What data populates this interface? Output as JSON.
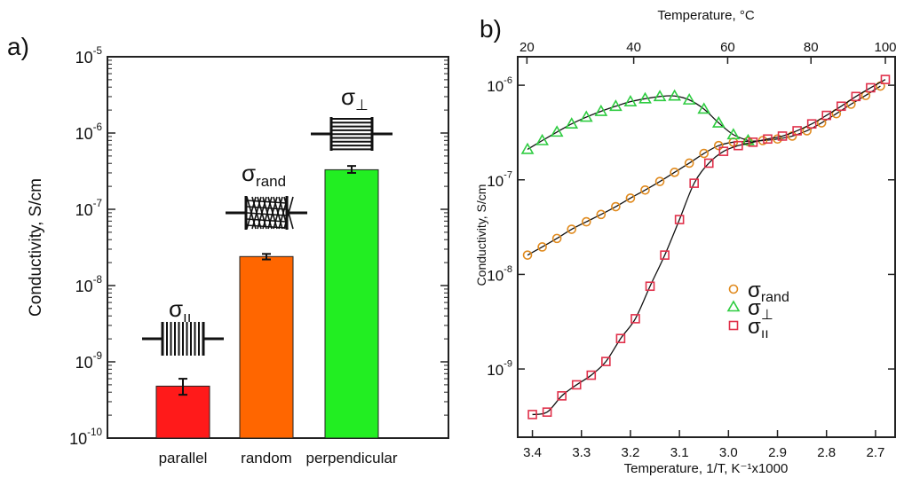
{
  "chart_data": [
    {
      "panel": "a)",
      "type": "bar",
      "ylabel": "Conductivity, S/cm",
      "yscale": "log",
      "ylim": [
        1e-10,
        1e-05
      ],
      "ytick_exponents": [
        "-10",
        "-9",
        "-8",
        "-7",
        "-6",
        "-5"
      ],
      "categories": [
        "parallel",
        "random",
        "perpendicular"
      ],
      "values": [
        4.8e-10,
        2.4e-08,
        3.3e-07
      ],
      "error_low": [
        3.7e-10,
        2.2e-08,
        3e-07
      ],
      "error_high": [
        6e-10,
        2.6e-08,
        3.7e-07
      ],
      "bar_colors": [
        "#ff1a1a",
        "#ff6600",
        "#22ee22"
      ],
      "annotations": [
        {
          "symbol": "σ",
          "subscript": "ıı",
          "icon": "parallel-lines-icon"
        },
        {
          "symbol": "σ",
          "subscript": "rand",
          "icon": "random-mesh-icon"
        },
        {
          "symbol": "σ",
          "subscript": "⊥",
          "icon": "perpendicular-lines-icon"
        }
      ]
    },
    {
      "panel": "b)",
      "type": "scatter",
      "xlabel": "Temperature, 1/T, K⁻¹x1000",
      "ylabel": "Conductivity, S/cm",
      "top_xlabel": "Temperature, °C",
      "xlim": [
        3.43,
        2.66
      ],
      "xticks": [
        "3.4",
        "3.3",
        "3.2",
        "3.1",
        "3.0",
        "2.9",
        "2.8",
        "2.7"
      ],
      "top_xticks": [
        "20",
        "40",
        "60",
        "80",
        "100"
      ],
      "yscale": "log",
      "ylim": [
        1.9e-10,
        2e-06
      ],
      "ytick_exponents": [
        "-9",
        "-8",
        "-7",
        "-6"
      ],
      "legend_position": "center-right",
      "series": [
        {
          "name": "σ",
          "subscript": "rand",
          "color": "#e08a1e",
          "marker": "circle",
          "x": [
            3.41,
            3.38,
            3.35,
            3.32,
            3.29,
            3.26,
            3.23,
            3.2,
            3.17,
            3.14,
            3.11,
            3.08,
            3.05,
            3.02,
            2.99,
            2.96,
            2.93,
            2.9,
            2.87,
            2.84,
            2.81,
            2.78,
            2.75,
            2.72,
            2.69
          ],
          "y": [
            1.6e-08,
            1.95e-08,
            2.4e-08,
            3e-08,
            3.6e-08,
            4.3e-08,
            5.2e-08,
            6.4e-08,
            7.8e-08,
            9.6e-08,
            1.2e-07,
            1.5e-07,
            1.9e-07,
            2.3e-07,
            2.5e-07,
            2.55e-07,
            2.6e-07,
            2.7e-07,
            2.9e-07,
            3.3e-07,
            4e-07,
            5e-07,
            6.3e-07,
            7.8e-07,
            9.8e-07
          ]
        },
        {
          "name": "σ",
          "subscript": "⊥",
          "color": "#2ecc40",
          "marker": "triangle",
          "x": [
            3.41,
            3.38,
            3.35,
            3.32,
            3.29,
            3.26,
            3.23,
            3.2,
            3.17,
            3.14,
            3.11,
            3.08,
            3.05,
            3.02,
            2.99,
            2.96
          ],
          "y": [
            2.1e-07,
            2.6e-07,
            3.2e-07,
            3.9e-07,
            4.6e-07,
            5.3e-07,
            6e-07,
            6.7e-07,
            7.2e-07,
            7.6e-07,
            7.7e-07,
            7e-07,
            5.6e-07,
            4e-07,
            3e-07,
            2.6e-07
          ]
        },
        {
          "name": "σ",
          "subscript": "ıı",
          "color": "#e0304a",
          "marker": "square",
          "x": [
            3.4,
            3.37,
            3.34,
            3.31,
            3.28,
            3.25,
            3.22,
            3.19,
            3.16,
            3.13,
            3.1,
            3.07,
            3.04,
            3.01,
            2.98,
            2.95,
            2.92,
            2.89,
            2.86,
            2.83,
            2.8,
            2.77,
            2.74,
            2.71,
            2.68
          ],
          "y": [
            3.3e-10,
            3.5e-10,
            5.2e-10,
            6.8e-10,
            8.6e-10,
            1.2e-09,
            2.1e-09,
            3.4e-09,
            7.5e-09,
            1.6e-08,
            3.8e-08,
            9.2e-08,
            1.5e-07,
            2e-07,
            2.3e-07,
            2.5e-07,
            2.7e-07,
            2.9e-07,
            3.3e-07,
            3.9e-07,
            4.8e-07,
            6e-07,
            7.6e-07,
            9.4e-07,
            1.15e-06
          ]
        }
      ]
    }
  ]
}
